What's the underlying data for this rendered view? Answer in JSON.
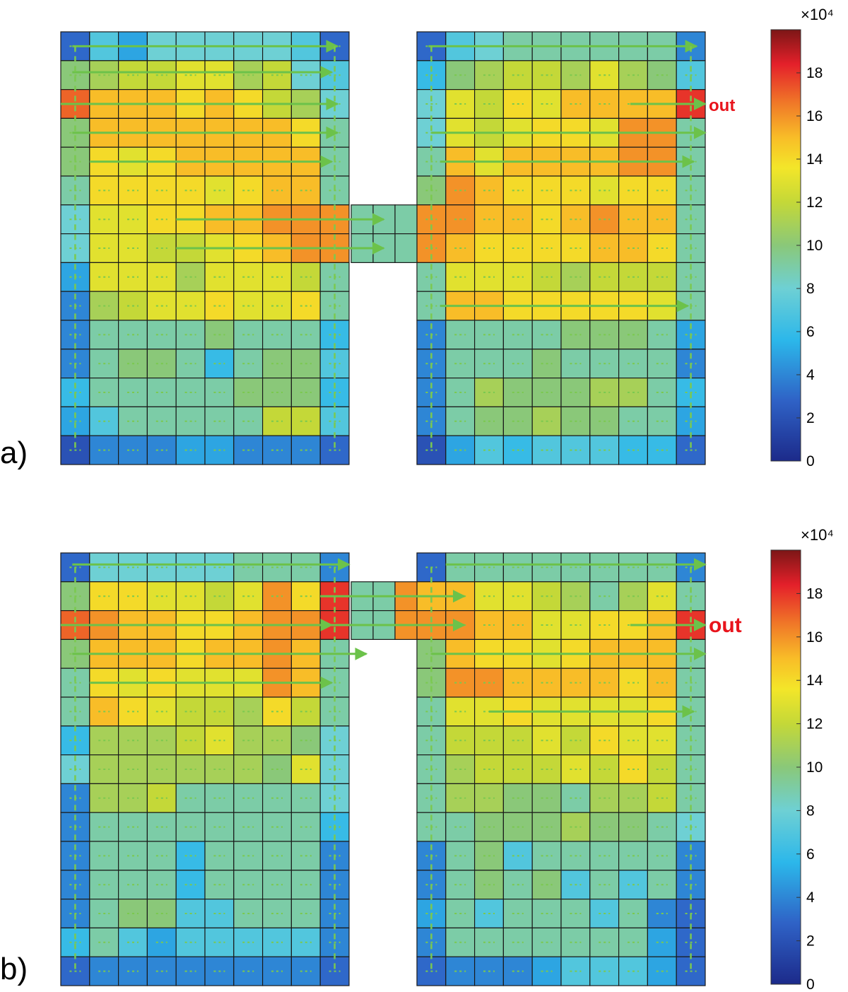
{
  "chart_data": [
    {
      "type": "heatmap",
      "panel_label": "a)",
      "outlet_label": "out",
      "colorbar": {
        "min": 0,
        "max": 20,
        "ticks": [
          "0",
          "2",
          "4",
          "6",
          "8",
          "10",
          "12",
          "14",
          "16",
          "18"
        ],
        "exponent": "×10⁴",
        "colormap": "jet"
      },
      "left_room": [
        [
          3,
          7,
          5,
          8,
          8,
          8,
          8,
          8,
          7,
          3
        ],
        [
          10,
          11,
          12,
          12,
          13,
          13,
          11,
          12,
          8,
          7
        ],
        [
          17,
          15,
          15,
          15,
          14,
          15,
          14,
          12,
          11,
          8
        ],
        [
          10,
          15,
          15,
          15,
          15,
          15,
          15,
          15,
          14,
          9
        ],
        [
          10,
          14,
          13,
          14,
          15,
          15,
          15,
          15,
          15,
          9
        ],
        [
          9,
          14,
          14,
          14,
          14,
          13,
          14,
          15,
          15,
          9
        ],
        [
          8,
          13,
          13,
          14,
          14,
          15,
          15,
          16,
          16,
          16
        ],
        [
          8,
          13,
          13,
          12,
          12,
          13,
          14,
          15,
          16,
          16
        ],
        [
          5,
          13,
          13,
          13,
          11,
          13,
          13,
          13,
          12,
          9
        ],
        [
          4,
          11,
          12,
          13,
          13,
          14,
          13,
          13,
          14,
          9
        ],
        [
          4,
          9,
          9,
          9,
          9,
          10,
          9,
          9,
          9,
          6
        ],
        [
          4,
          9,
          10,
          10,
          9,
          6,
          9,
          10,
          10,
          7
        ],
        [
          6,
          9,
          9,
          9,
          9,
          9,
          10,
          10,
          10,
          6
        ],
        [
          5,
          7,
          9,
          9,
          9,
          9,
          9,
          12,
          12,
          7
        ],
        [
          2,
          4,
          4,
          4,
          5,
          5,
          4,
          4,
          4,
          3
        ]
      ],
      "corridor": [
        [
          9,
          9,
          9
        ],
        [
          9,
          9,
          9
        ]
      ],
      "right_room": [
        [
          3,
          7,
          8,
          9,
          9,
          9,
          9,
          9,
          9,
          4
        ],
        [
          6,
          10,
          11,
          12,
          12,
          11,
          13,
          11,
          10,
          7
        ],
        [
          8,
          13,
          12,
          14,
          13,
          15,
          15,
          15,
          15,
          18
        ],
        [
          8,
          13,
          12,
          13,
          14,
          14,
          13,
          16,
          16,
          9
        ],
        [
          9,
          15,
          13,
          15,
          15,
          15,
          15,
          16,
          16,
          9
        ],
        [
          10,
          16,
          15,
          14,
          14,
          14,
          13,
          14,
          14,
          9
        ],
        [
          16,
          16,
          15,
          15,
          14,
          15,
          16,
          15,
          15,
          9
        ],
        [
          16,
          15,
          14,
          14,
          14,
          14,
          15,
          15,
          14,
          9
        ],
        [
          9,
          13,
          13,
          13,
          12,
          11,
          12,
          12,
          12,
          9
        ],
        [
          9,
          15,
          15,
          14,
          14,
          14,
          14,
          14,
          13,
          9
        ],
        [
          4,
          9,
          9,
          9,
          9,
          10,
          10,
          10,
          9,
          5
        ],
        [
          4,
          9,
          9,
          9,
          10,
          9,
          9,
          9,
          9,
          4
        ],
        [
          4,
          9,
          11,
          10,
          10,
          10,
          11,
          11,
          9,
          6
        ],
        [
          4,
          9,
          10,
          10,
          11,
          10,
          10,
          9,
          9,
          5
        ],
        [
          2,
          5,
          7,
          6,
          7,
          7,
          7,
          6,
          6,
          3
        ]
      ],
      "flow_paths": [
        {
          "row": 0.5,
          "from": 0.4,
          "to": 9.6,
          "room": "left"
        },
        {
          "row": 1.4,
          "from": 0.4,
          "to": 9.4,
          "room": "left"
        },
        {
          "row": 2.5,
          "from": 0.0,
          "to": 9.6,
          "room": "left"
        },
        {
          "row": 3.5,
          "from": 0.4,
          "to": 9.6,
          "room": "left"
        },
        {
          "row": 4.5,
          "from": 1.0,
          "to": 9.4,
          "room": "left"
        },
        {
          "row": 6.5,
          "from": 4.0,
          "to": 11.2,
          "room": "bridge"
        },
        {
          "row": 7.5,
          "from": 4.0,
          "to": 11.2,
          "room": "bridge"
        },
        {
          "row": 0.5,
          "from": 0.4,
          "to": 9.7,
          "room": "right"
        },
        {
          "row": 2.5,
          "from": 7.4,
          "to": 10.0,
          "room": "right"
        },
        {
          "row": 3.5,
          "from": 0.5,
          "to": 10.0,
          "room": "right"
        },
        {
          "row": 4.5,
          "from": 0.8,
          "to": 9.6,
          "room": "right"
        },
        {
          "row": 9.5,
          "from": 0.8,
          "to": 9.4,
          "room": "right"
        }
      ]
    },
    {
      "type": "heatmap",
      "panel_label": "b)",
      "outlet_label": "out",
      "colorbar": {
        "min": 0,
        "max": 20,
        "ticks": [
          "0",
          "2",
          "4",
          "6",
          "8",
          "10",
          "12",
          "14",
          "16",
          "18"
        ],
        "exponent": "×10⁴",
        "colormap": "jet"
      },
      "left_room": [
        [
          3,
          8,
          8,
          8,
          8,
          8,
          9,
          9,
          9,
          4
        ],
        [
          10,
          14,
          14,
          13,
          13,
          12,
          13,
          16,
          14,
          18
        ],
        [
          17,
          16,
          15,
          15,
          14,
          14,
          15,
          16,
          16,
          18
        ],
        [
          10,
          15,
          15,
          15,
          14,
          15,
          15,
          16,
          15,
          9
        ],
        [
          9,
          14,
          13,
          14,
          13,
          13,
          13,
          16,
          15,
          9
        ],
        [
          9,
          15,
          14,
          13,
          12,
          12,
          11,
          14,
          12,
          9
        ],
        [
          6,
          11,
          11,
          11,
          12,
          13,
          11,
          11,
          10,
          8
        ],
        [
          8,
          11,
          11,
          11,
          11,
          11,
          11,
          10,
          13,
          8
        ],
        [
          4,
          11,
          11,
          12,
          9,
          9,
          9,
          9,
          9,
          8
        ],
        [
          4,
          9,
          9,
          9,
          9,
          9,
          9,
          9,
          9,
          6
        ],
        [
          4,
          9,
          9,
          9,
          6,
          9,
          9,
          9,
          9,
          4
        ],
        [
          4,
          9,
          9,
          9,
          6,
          9,
          9,
          9,
          9,
          4
        ],
        [
          4,
          9,
          10,
          10,
          7,
          7,
          9,
          9,
          9,
          4
        ],
        [
          6,
          9,
          7,
          5,
          7,
          7,
          7,
          7,
          7,
          4
        ],
        [
          3,
          4,
          4,
          4,
          4,
          4,
          4,
          4,
          4,
          3
        ]
      ],
      "corridor": [
        [
          9,
          9,
          16
        ],
        [
          9,
          9,
          16
        ]
      ],
      "right_room": [
        [
          3,
          9,
          9,
          9,
          9,
          9,
          9,
          9,
          9,
          4
        ],
        [
          15,
          15,
          13,
          13,
          12,
          11,
          9,
          11,
          13,
          9
        ],
        [
          16,
          16,
          15,
          15,
          13,
          13,
          14,
          14,
          15,
          18
        ],
        [
          10,
          15,
          14,
          14,
          13,
          14,
          15,
          15,
          15,
          9
        ],
        [
          10,
          16,
          16,
          15,
          15,
          15,
          15,
          14,
          15,
          9
        ],
        [
          9,
          13,
          13,
          14,
          13,
          13,
          13,
          13,
          14,
          9
        ],
        [
          9,
          12,
          12,
          12,
          13,
          12,
          14,
          13,
          13,
          9
        ],
        [
          9,
          11,
          12,
          12,
          12,
          13,
          12,
          14,
          12,
          9
        ],
        [
          9,
          11,
          11,
          10,
          10,
          9,
          11,
          11,
          12,
          9
        ],
        [
          9,
          9,
          10,
          10,
          10,
          11,
          10,
          10,
          9,
          8
        ],
        [
          4,
          9,
          10,
          7,
          9,
          9,
          9,
          9,
          9,
          4
        ],
        [
          4,
          9,
          10,
          9,
          10,
          7,
          9,
          7,
          9,
          4
        ],
        [
          5,
          9,
          7,
          9,
          9,
          9,
          7,
          9,
          4,
          3
        ],
        [
          4,
          9,
          9,
          9,
          9,
          9,
          9,
          9,
          5,
          3
        ],
        [
          3,
          4,
          4,
          4,
          5,
          7,
          7,
          7,
          5,
          3
        ]
      ],
      "flow_paths": [
        {
          "row": 0.4,
          "from": 0.4,
          "to": 10.0,
          "room": "left"
        },
        {
          "row": 2.5,
          "from": 0.0,
          "to": 9.4,
          "room": "left"
        },
        {
          "row": 3.5,
          "from": 0.4,
          "to": 10.6,
          "room": "left"
        },
        {
          "row": 4.5,
          "from": 1.0,
          "to": 9.4,
          "room": "left"
        },
        {
          "row": 1.5,
          "from": 9.0,
          "to": 14.0,
          "room": "bridge"
        },
        {
          "row": 2.5,
          "from": 9.0,
          "to": 14.0,
          "room": "bridge"
        },
        {
          "row": 0.4,
          "from": 1.0,
          "to": 10.0,
          "room": "right"
        },
        {
          "row": 2.5,
          "from": 7.4,
          "to": 10.0,
          "room": "right"
        },
        {
          "row": 3.5,
          "from": 0.5,
          "to": 10.0,
          "room": "right"
        },
        {
          "row": 5.5,
          "from": 2.5,
          "to": 9.6,
          "room": "right"
        }
      ]
    }
  ]
}
